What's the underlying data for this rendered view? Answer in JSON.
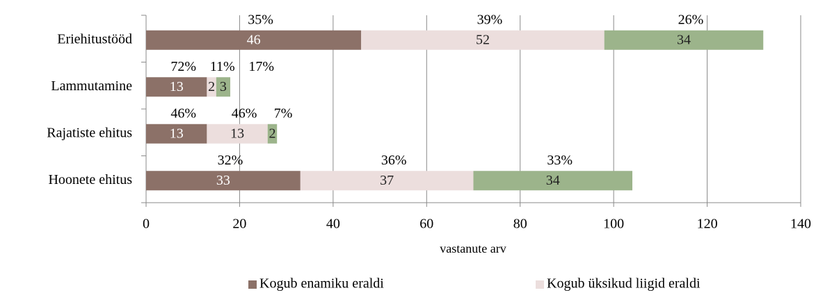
{
  "chart_data": {
    "type": "stacked_barh",
    "categories": [
      "Eriehitustööd",
      "Lammutamine",
      "Rajatiste ehitus",
      "Hoonete ehitus"
    ],
    "series": [
      {
        "name": "Kogub enamiku eraldi",
        "color": "#8c7168",
        "values": [
          46,
          13,
          13,
          33
        ],
        "shares": [
          35,
          72,
          46,
          32
        ],
        "share_labels": [
          "35%",
          "72%",
          "46%",
          "32%"
        ]
      },
      {
        "name": "Kogub üksikud liigid eraldi",
        "color": "#ecdedd",
        "values": [
          52,
          2,
          13,
          37
        ],
        "shares": [
          39,
          11,
          46,
          36
        ],
        "share_labels": [
          "39%",
          "11%",
          "46%",
          "36%"
        ]
      },
      {
        "name": null,
        "color": "#9cb48b",
        "values": [
          34,
          3,
          2,
          34
        ],
        "shares": [
          26,
          17,
          7,
          33
        ],
        "share_labels": [
          "26%",
          "17%",
          "7%",
          "33%"
        ]
      }
    ],
    "x_label": "vastanute arv",
    "xlim": [
      0,
      140
    ],
    "xticks": [
      0,
      20,
      40,
      60,
      80,
      100,
      120,
      140
    ],
    "grid": true,
    "legend": "bottom"
  }
}
